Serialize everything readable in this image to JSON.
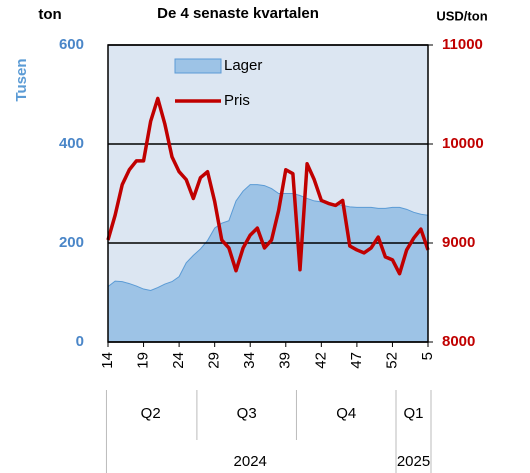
{
  "chart_data": {
    "type": "area-line",
    "title": "De 4 senaste kvartalen",
    "y_unit": "ton",
    "ylabel": "Tusen",
    "y2label": "USD/ton",
    "categories": [
      "14",
      null,
      null,
      null,
      null,
      "19",
      null,
      null,
      null,
      null,
      "24",
      null,
      null,
      null,
      null,
      "29",
      null,
      null,
      null,
      null,
      "34",
      null,
      null,
      null,
      null,
      "39",
      null,
      null,
      null,
      null,
      "42",
      null,
      null,
      null,
      null,
      "47",
      null,
      null,
      null,
      null,
      "52",
      null,
      null,
      null,
      null,
      "5"
    ],
    "quarters": {
      "labels": [
        "Q2",
        "Q3",
        "Q4",
        "Q1"
      ],
      "spans": [
        13,
        14,
        14,
        5
      ]
    },
    "years": {
      "labels": [
        "2024",
        "2025"
      ],
      "spans": [
        41,
        5
      ]
    },
    "ylim": [
      0,
      600
    ],
    "yticks": [
      0,
      200,
      400,
      600
    ],
    "y2lim": [
      8000,
      11000
    ],
    "y2ticks": [
      8000,
      9000,
      10000,
      11000
    ],
    "grid": true,
    "legend": "top-left",
    "series": [
      {
        "name": "Lager",
        "kind": "area",
        "color": "#9dc3e6",
        "values": [
          112,
          123,
          122,
          118,
          113,
          107,
          104,
          110,
          117,
          122,
          132,
          160,
          175,
          188,
          205,
          230,
          240,
          245,
          285,
          305,
          318,
          318,
          316,
          310,
          300,
          300,
          300,
          296,
          290,
          285,
          283,
          280,
          278,
          276,
          273,
          272,
          272,
          272,
          270,
          270,
          272,
          272,
          268,
          262,
          258,
          256
        ]
      },
      {
        "name": "Pris",
        "kind": "line",
        "color": "#c00000",
        "axis": "y2",
        "values": [
          9030,
          9280,
          9590,
          9740,
          9830,
          9830,
          10230,
          10460,
          10200,
          9870,
          9720,
          9640,
          9450,
          9660,
          9720,
          9420,
          9030,
          8950,
          8720,
          8950,
          9080,
          9150,
          8950,
          9030,
          9330,
          9740,
          9700,
          8730,
          9800,
          9640,
          9430,
          9400,
          9380,
          9430,
          8970,
          8930,
          8900,
          8950,
          9060,
          8860,
          8830,
          8690,
          8930,
          9050,
          9140,
          8930
        ]
      }
    ]
  }
}
